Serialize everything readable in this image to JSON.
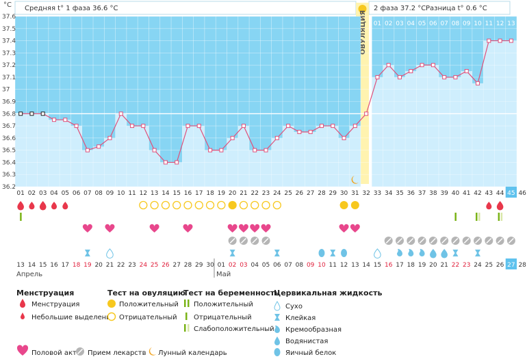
{
  "chart_data": {
    "type": "line",
    "unit_label": "°C",
    "title_phase1": "Средняя t° 1 фаза 36.6 °C",
    "title_phase2": "2 фаза 37.2 °C",
    "title_diff": "Разница t° 0.6 °C",
    "ovulation_label": "ОВУЛЯЦИЯ",
    "ylim": [
      36.2,
      37.6
    ],
    "y_ticks": [
      "36.2",
      "36.3",
      "36.4",
      "36.5",
      "36.6",
      "36.7",
      "36.8",
      "36.9",
      "37",
      "37.1",
      "37.2",
      "37.3",
      "37.4",
      "37.5",
      "37.6"
    ],
    "top_cycle_days": [
      "01",
      "02",
      "03",
      "04",
      "05",
      "06",
      "07",
      "08",
      "09",
      "10",
      "11",
      "12",
      "13",
      "14"
    ],
    "cycle_days": [
      "01",
      "02",
      "03",
      "04",
      "05",
      "06",
      "07",
      "08",
      "09",
      "10",
      "11",
      "12",
      "13",
      "14",
      "15",
      "16",
      "17",
      "18",
      "19",
      "20",
      "21",
      "22",
      "23",
      "24",
      "25",
      "26",
      "27",
      "28",
      "29",
      "30",
      "31",
      "32",
      "33",
      "34",
      "35",
      "36",
      "37",
      "38",
      "39",
      "40",
      "41",
      "42",
      "43",
      "44",
      "45",
      "46"
    ],
    "temperatures": [
      36.8,
      36.8,
      36.8,
      36.75,
      36.75,
      36.7,
      36.5,
      36.53,
      36.6,
      36.8,
      36.7,
      36.7,
      36.5,
      36.4,
      36.4,
      36.7,
      36.7,
      36.5,
      36.5,
      36.6,
      36.7,
      36.5,
      36.5,
      36.6,
      36.7,
      36.65,
      36.65,
      36.7,
      36.7,
      36.6,
      36.7,
      36.8,
      37.1,
      37.2,
      37.1,
      37.15,
      37.2,
      37.2,
      37.1,
      37.1,
      37.15,
      37.05,
      37.4,
      37.4,
      37.4,
      null
    ],
    "calendar_dates": [
      "13",
      "14",
      "15",
      "16",
      "17",
      "18",
      "19",
      "20",
      "21",
      "22",
      "23",
      "24",
      "25",
      "26",
      "27",
      "28",
      "29",
      "30",
      "01",
      "02",
      "03",
      "04",
      "05",
      "06",
      "07",
      "08",
      "09",
      "10",
      "11",
      "12",
      "13",
      "14",
      "15",
      "16",
      "17",
      "18",
      "19",
      "20",
      "21",
      "22",
      "23",
      "24",
      "25",
      "26",
      "27",
      "28"
    ],
    "months": [
      "Апрель",
      "Май"
    ],
    "legend": {
      "menstruation_title": "Менструация",
      "menstruation": "Менструация",
      "spotting": "Небольшие выделения",
      "ovtest_title": "Тест на овуляцию",
      "ovtest_pos": "Положительный",
      "ovtest_neg": "Отрицательный",
      "pregtest_title": "Тест на беременность",
      "pregtest_pos": "Положительный",
      "pregtest_neg": "Отрицательный",
      "pregtest_weak": "Слабоположительный",
      "cervical_title": "Цервикальная жидкость",
      "cf_dry": "Сухо",
      "cf_sticky": "Клейкая",
      "cf_creamy": "Кремообразная",
      "cf_watery": "Водянистая",
      "cf_eggwhite": "Яичный белок",
      "intercourse": "Половой акт",
      "medication": "Прием лекарств",
      "lunar": "Лунный календарь"
    },
    "colors": {
      "phase_bg": "#87d5f3",
      "bar_fill": "#cfeefd",
      "line": "#e0507a",
      "ovulation": "#fff3b0",
      "accent_red": "#e8374b",
      "heart": "#e8478c",
      "green": "#7ab317",
      "yellow": "#f7c81f",
      "cervical": "#6fc3e6",
      "pill": "#b5b5b5",
      "moon": "#f1a21c"
    }
  }
}
